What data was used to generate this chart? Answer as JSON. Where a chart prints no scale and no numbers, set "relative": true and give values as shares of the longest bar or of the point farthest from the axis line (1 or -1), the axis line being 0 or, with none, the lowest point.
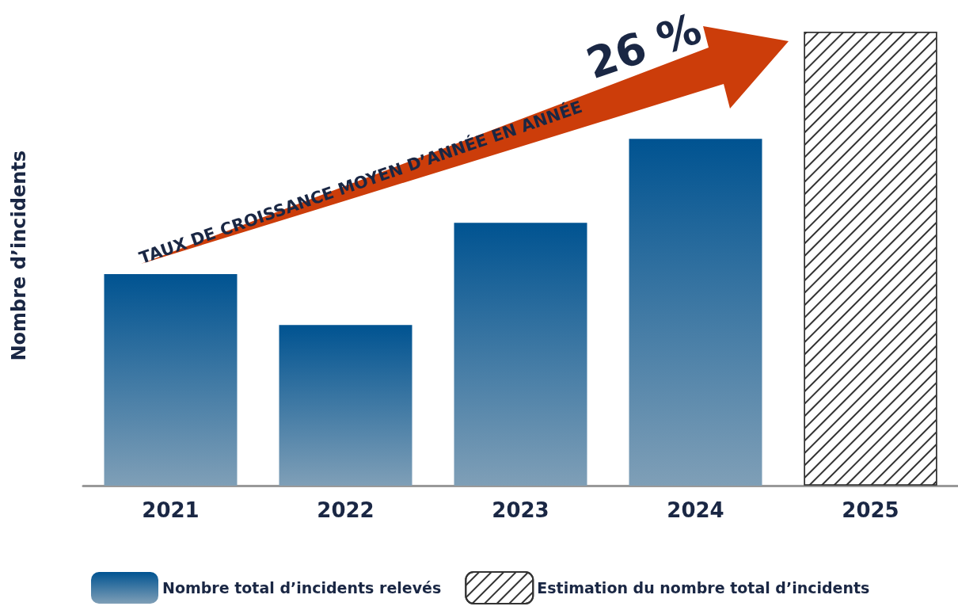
{
  "chart_data": {
    "type": "bar",
    "relative": true,
    "stacked": true,
    "ylabel": "Nombre d’incidents",
    "categories": [
      "2021",
      "2022",
      "2023",
      "2024",
      "2025"
    ],
    "series": [
      {
        "name": "Nombre total d’incidents relevés",
        "color": "#004070",
        "values": [
          0.466,
          0.354,
          0.579,
          0.764,
          null
        ]
      },
      {
        "name": "Estimation du nombre total d’incidents",
        "color": "#ffffff",
        "values": [
          null,
          null,
          null,
          null,
          1
        ]
      }
    ],
    "annotations": [
      "TAUX DE CROISSANCE MOYEN D’ANNÉE EN ANNÉE",
      "26 %"
    ],
    "legend": "bottom"
  }
}
